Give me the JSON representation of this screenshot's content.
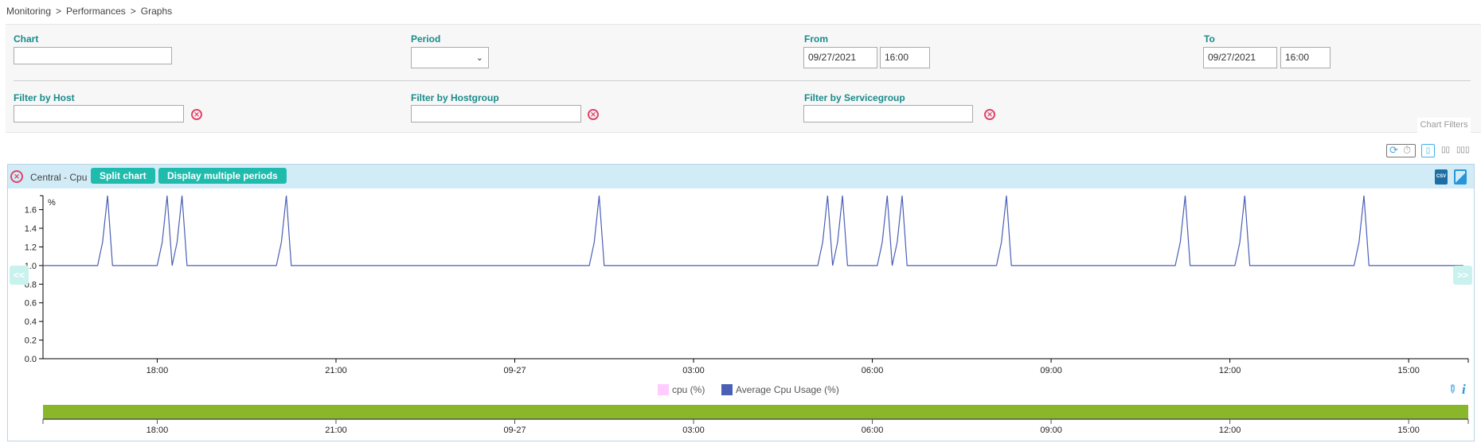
{
  "breadcrumb": [
    "Monitoring",
    "Performances",
    "Graphs"
  ],
  "breadcrumb_sep": ">",
  "filters": {
    "chart": {
      "label": "Chart",
      "value": ""
    },
    "period": {
      "label": "Period",
      "value": ""
    },
    "from": {
      "label": "From",
      "date": "09/27/2021",
      "time": "16:00"
    },
    "to": {
      "label": "To",
      "date": "09/27/2021",
      "time": "16:00"
    },
    "host": {
      "label": "Filter by Host",
      "value": ""
    },
    "hostgroup": {
      "label": "Filter by Hostgroup",
      "value": ""
    },
    "servicegroup": {
      "label": "Filter by Servicegroup",
      "value": ""
    },
    "tab_label": "Chart Filters"
  },
  "toolbar": {
    "icons": [
      "refresh-icon",
      "timer-icon",
      "layout-1-column-icon",
      "layout-2-columns-icon",
      "layout-3-columns-icon"
    ],
    "layout_1": "▯",
    "layout_2": "▯▯",
    "layout_3": "▯▯▯"
  },
  "chart_panel": {
    "title": "Central - Cpu",
    "split_label": "Split chart",
    "multi_label": "Display multiple periods",
    "csv_label": "CSV",
    "prev_label": "<<",
    "next_label": ">>",
    "accent": "#1fbcae",
    "header_bg": "#d2ecf7"
  },
  "chart_data": {
    "type": "line",
    "title": "",
    "xlabel": "",
    "ylabel": "%",
    "xlim": [
      "2021-09-26 16:05",
      "2021-09-27 16:00"
    ],
    "ylim": [
      0,
      1.75
    ],
    "yticks": [
      "0.0",
      "0.2",
      "0.4",
      "0.6",
      "0.8",
      "1.0",
      "1.2",
      "1.4",
      "1.6"
    ],
    "xticks": [
      {
        "t": "2021-09-26 18:00",
        "label": "18:00"
      },
      {
        "t": "2021-09-26 21:00",
        "label": "21:00"
      },
      {
        "t": "2021-09-27 00:00",
        "label": "09-27"
      },
      {
        "t": "2021-09-27 03:00",
        "label": "03:00"
      },
      {
        "t": "2021-09-27 06:00",
        "label": "06:00"
      },
      {
        "t": "2021-09-27 09:00",
        "label": "09:00"
      },
      {
        "t": "2021-09-27 12:00",
        "label": "12:00"
      },
      {
        "t": "2021-09-27 15:00",
        "label": "15:00"
      }
    ],
    "grid": false,
    "legend_placement": "bottom",
    "series": [
      {
        "name": "cpu (%)",
        "color": "#ffccff",
        "points": []
      },
      {
        "name": "Average Cpu Usage (%)",
        "color": "#4b5fb5",
        "points": [
          [
            "2021-09-26 16:05",
            1.0
          ],
          [
            "2021-09-26 17:00",
            1.0
          ],
          [
            "2021-09-26 17:05",
            1.25
          ],
          [
            "2021-09-26 17:10",
            1.75
          ],
          [
            "2021-09-26 17:15",
            1.0
          ],
          [
            "2021-09-26 18:00",
            1.0
          ],
          [
            "2021-09-26 18:05",
            1.25
          ],
          [
            "2021-09-26 18:10",
            1.75
          ],
          [
            "2021-09-26 18:15",
            1.0
          ],
          [
            "2021-09-26 18:20",
            1.25
          ],
          [
            "2021-09-26 18:25",
            1.75
          ],
          [
            "2021-09-26 18:30",
            1.0
          ],
          [
            "2021-09-26 20:00",
            1.0
          ],
          [
            "2021-09-26 20:05",
            1.25
          ],
          [
            "2021-09-26 20:10",
            1.75
          ],
          [
            "2021-09-26 20:15",
            1.0
          ],
          [
            "2021-09-27 01:15",
            1.0
          ],
          [
            "2021-09-27 01:20",
            1.25
          ],
          [
            "2021-09-27 01:25",
            1.75
          ],
          [
            "2021-09-27 01:30",
            1.0
          ],
          [
            "2021-09-27 05:05",
            1.0
          ],
          [
            "2021-09-27 05:10",
            1.25
          ],
          [
            "2021-09-27 05:15",
            1.75
          ],
          [
            "2021-09-27 05:20",
            1.0
          ],
          [
            "2021-09-27 05:25",
            1.25
          ],
          [
            "2021-09-27 05:30",
            1.75
          ],
          [
            "2021-09-27 05:35",
            1.0
          ],
          [
            "2021-09-27 06:05",
            1.0
          ],
          [
            "2021-09-27 06:10",
            1.25
          ],
          [
            "2021-09-27 06:15",
            1.75
          ],
          [
            "2021-09-27 06:20",
            1.0
          ],
          [
            "2021-09-27 06:25",
            1.25
          ],
          [
            "2021-09-27 06:30",
            1.75
          ],
          [
            "2021-09-27 06:35",
            1.0
          ],
          [
            "2021-09-27 08:05",
            1.0
          ],
          [
            "2021-09-27 08:10",
            1.25
          ],
          [
            "2021-09-27 08:15",
            1.75
          ],
          [
            "2021-09-27 08:20",
            1.0
          ],
          [
            "2021-09-27 11:05",
            1.0
          ],
          [
            "2021-09-27 11:10",
            1.25
          ],
          [
            "2021-09-27 11:15",
            1.75
          ],
          [
            "2021-09-27 11:20",
            1.0
          ],
          [
            "2021-09-27 12:05",
            1.0
          ],
          [
            "2021-09-27 12:10",
            1.25
          ],
          [
            "2021-09-27 12:15",
            1.75
          ],
          [
            "2021-09-27 12:20",
            1.0
          ],
          [
            "2021-09-27 14:05",
            1.0
          ],
          [
            "2021-09-27 14:10",
            1.25
          ],
          [
            "2021-09-27 14:15",
            1.75
          ],
          [
            "2021-09-27 14:20",
            1.0
          ],
          [
            "2021-09-27 15:55",
            1.0
          ]
        ]
      }
    ],
    "navigator_color": "#8ab629"
  }
}
